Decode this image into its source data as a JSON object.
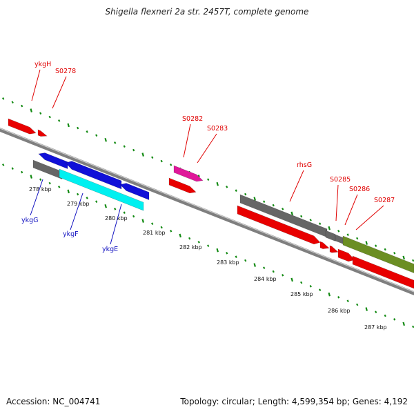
{
  "title": "Shigella flexneri 2a str. 2457T, complete genome",
  "accession": "Accession: NC_004741",
  "topology": "Topology: circular; Length: 4,599,354 bp; Genes: 4,192",
  "colors": {
    "forward": "#e80000",
    "reverse_blue": "#1010d8",
    "cyan": "#00f0f0",
    "magenta": "#e0189a",
    "gray": "#666666",
    "olive": "#6b8e23",
    "tick": "#138a13",
    "label_red": "#e00000",
    "label_blue": "#1010c0"
  },
  "scale_labels": [
    "278 kbp",
    "279 kbp",
    "280 kbp",
    "281 kbp",
    "282 kbp",
    "283 kbp",
    "284 kbp",
    "285 kbp",
    "286 kbp",
    "287 kbp"
  ],
  "gene_labels": [
    {
      "name": "ykgH",
      "strand": "forward"
    },
    {
      "name": "S0278",
      "strand": "forward"
    },
    {
      "name": "S0282",
      "strand": "forward"
    },
    {
      "name": "S0283",
      "strand": "forward"
    },
    {
      "name": "rhsG",
      "strand": "forward"
    },
    {
      "name": "S0285",
      "strand": "forward"
    },
    {
      "name": "S0286",
      "strand": "forward"
    },
    {
      "name": "S0287",
      "strand": "forward"
    },
    {
      "name": "ykgG",
      "strand": "reverse"
    },
    {
      "name": "ykgF",
      "strand": "reverse"
    },
    {
      "name": "ykgE",
      "strand": "reverse"
    }
  ]
}
